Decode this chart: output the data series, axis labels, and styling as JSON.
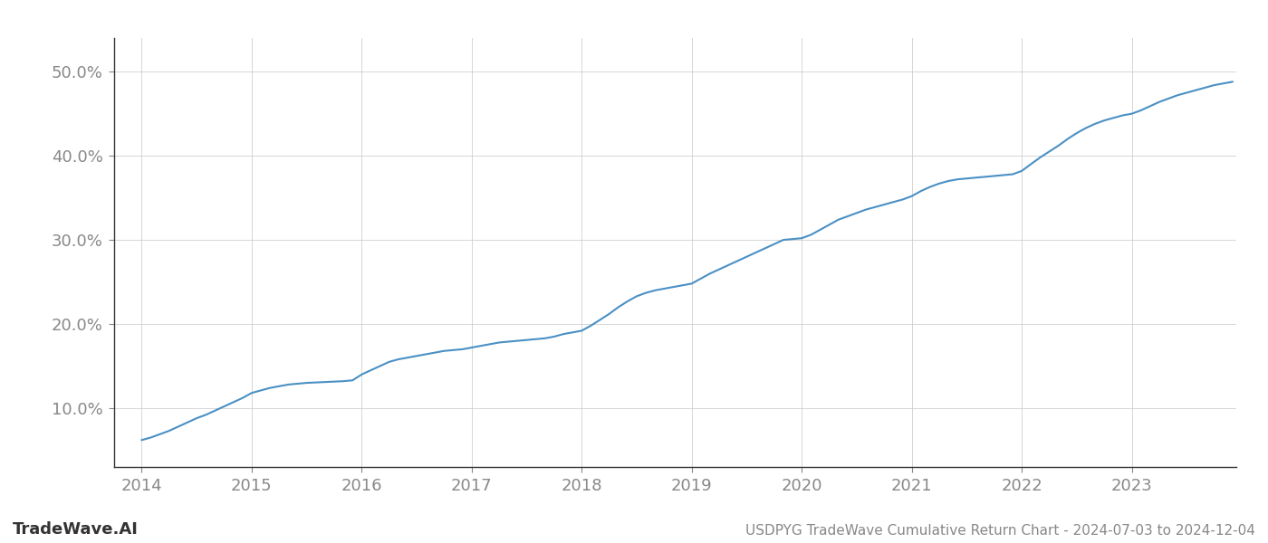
{
  "title": "USDPYG TradeWave Cumulative Return Chart - 2024-07-03 to 2024-12-04",
  "watermark": "TradeWave.AI",
  "line_color": "#4a90c4",
  "background_color": "#ffffff",
  "grid_color": "#cccccc",
  "x_years": [
    2014.0,
    2014.083,
    2014.167,
    2014.25,
    2014.333,
    2014.417,
    2014.5,
    2014.583,
    2014.667,
    2014.75,
    2014.833,
    2014.917,
    2015.0,
    2015.083,
    2015.167,
    2015.25,
    2015.333,
    2015.417,
    2015.5,
    2015.583,
    2015.667,
    2015.75,
    2015.833,
    2015.917,
    2016.0,
    2016.083,
    2016.167,
    2016.25,
    2016.333,
    2016.417,
    2016.5,
    2016.583,
    2016.667,
    2016.75,
    2016.833,
    2016.917,
    2017.0,
    2017.083,
    2017.167,
    2017.25,
    2017.333,
    2017.417,
    2017.5,
    2017.583,
    2017.667,
    2017.75,
    2017.833,
    2017.917,
    2018.0,
    2018.083,
    2018.167,
    2018.25,
    2018.333,
    2018.417,
    2018.5,
    2018.583,
    2018.667,
    2018.75,
    2018.833,
    2018.917,
    2019.0,
    2019.083,
    2019.167,
    2019.25,
    2019.333,
    2019.417,
    2019.5,
    2019.583,
    2019.667,
    2019.75,
    2019.833,
    2019.917,
    2020.0,
    2020.083,
    2020.167,
    2020.25,
    2020.333,
    2020.417,
    2020.5,
    2020.583,
    2020.667,
    2020.75,
    2020.833,
    2020.917,
    2021.0,
    2021.083,
    2021.167,
    2021.25,
    2021.333,
    2021.417,
    2021.5,
    2021.583,
    2021.667,
    2021.75,
    2021.833,
    2021.917,
    2022.0,
    2022.083,
    2022.167,
    2022.25,
    2022.333,
    2022.417,
    2022.5,
    2022.583,
    2022.667,
    2022.75,
    2022.833,
    2022.917,
    2023.0,
    2023.083,
    2023.167,
    2023.25,
    2023.333,
    2023.417,
    2023.5,
    2023.583,
    2023.667,
    2023.75,
    2023.833,
    2023.917
  ],
  "y_values": [
    6.2,
    6.5,
    6.9,
    7.3,
    7.8,
    8.3,
    8.8,
    9.2,
    9.7,
    10.2,
    10.7,
    11.2,
    11.8,
    12.1,
    12.4,
    12.6,
    12.8,
    12.9,
    13.0,
    13.05,
    13.1,
    13.15,
    13.2,
    13.3,
    14.0,
    14.5,
    15.0,
    15.5,
    15.8,
    16.0,
    16.2,
    16.4,
    16.6,
    16.8,
    16.9,
    17.0,
    17.2,
    17.4,
    17.6,
    17.8,
    17.9,
    18.0,
    18.1,
    18.2,
    18.3,
    18.5,
    18.8,
    19.0,
    19.2,
    19.8,
    20.5,
    21.2,
    22.0,
    22.7,
    23.3,
    23.7,
    24.0,
    24.2,
    24.4,
    24.6,
    24.8,
    25.4,
    26.0,
    26.5,
    27.0,
    27.5,
    28.0,
    28.5,
    29.0,
    29.5,
    30.0,
    30.1,
    30.2,
    30.6,
    31.2,
    31.8,
    32.4,
    32.8,
    33.2,
    33.6,
    33.9,
    34.2,
    34.5,
    34.8,
    35.2,
    35.8,
    36.3,
    36.7,
    37.0,
    37.2,
    37.3,
    37.4,
    37.5,
    37.6,
    37.7,
    37.8,
    38.2,
    39.0,
    39.8,
    40.5,
    41.2,
    42.0,
    42.7,
    43.3,
    43.8,
    44.2,
    44.5,
    44.8,
    45.0,
    45.4,
    45.9,
    46.4,
    46.8,
    47.2,
    47.5,
    47.8,
    48.1,
    48.4,
    48.6,
    48.8
  ],
  "yticks": [
    10.0,
    20.0,
    30.0,
    40.0,
    50.0
  ],
  "xticks": [
    2014,
    2015,
    2016,
    2017,
    2018,
    2019,
    2020,
    2021,
    2022,
    2023
  ],
  "ylim": [
    3.0,
    54.0
  ],
  "xlim": [
    2013.75,
    2023.95
  ],
  "line_width": 1.5,
  "tick_label_color": "#888888",
  "tick_label_fontsize": 13,
  "watermark_fontsize": 13,
  "title_fontsize": 11,
  "axis_color": "#333333",
  "spine_color": "#333333"
}
